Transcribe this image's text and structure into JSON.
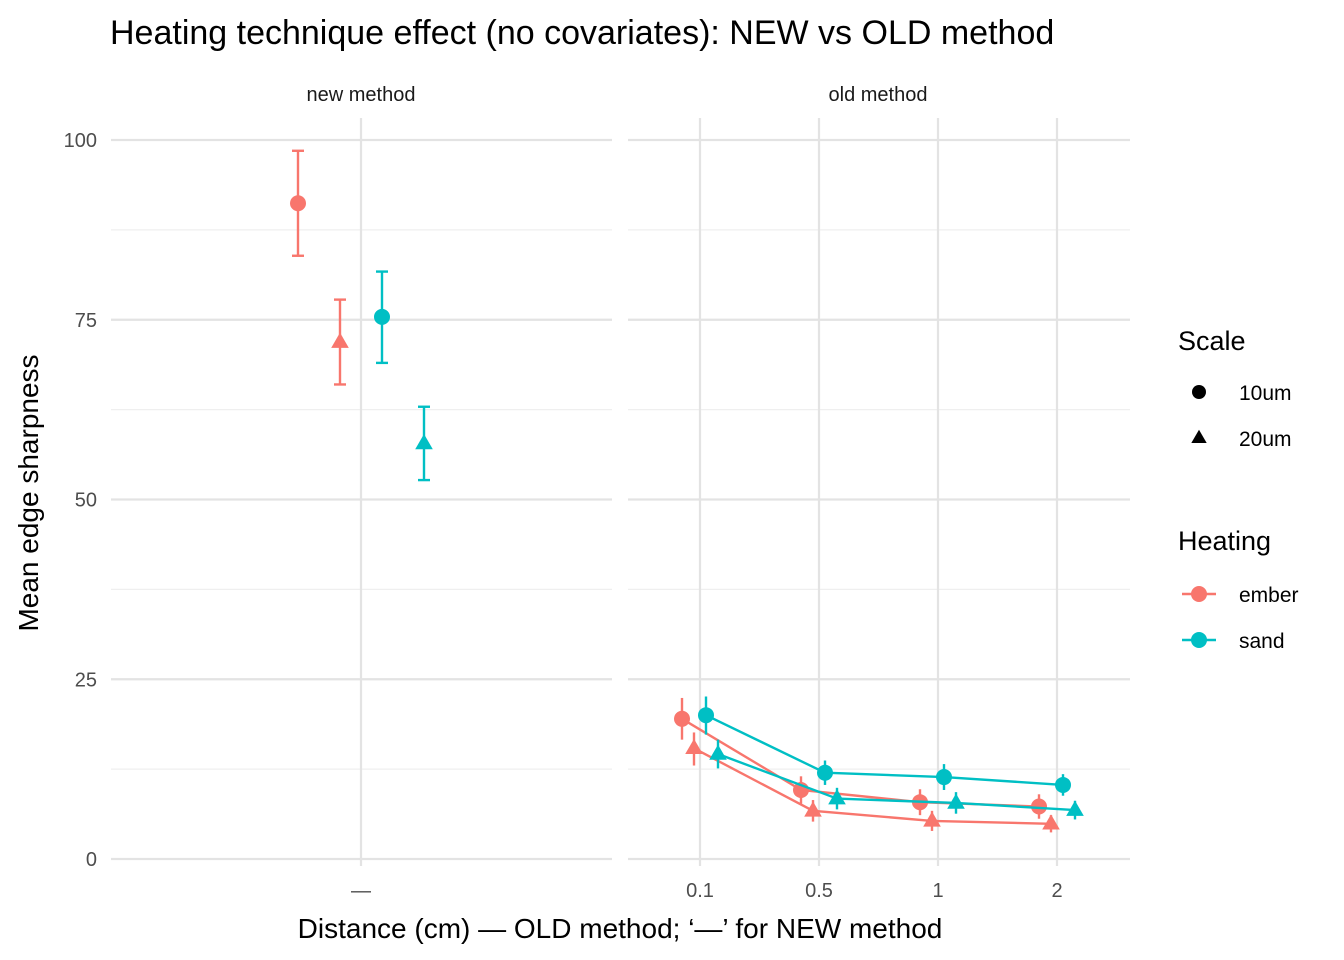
{
  "chart_data": {
    "type": "scatter",
    "title": "Heating technique effect (no covariates): NEW vs OLD method",
    "xlabel": "Distance (cm) — OLD method; ‘—’ for NEW method",
    "ylabel": "Mean edge sharpness",
    "ylim": [
      0,
      100
    ],
    "yticks": [
      0,
      25,
      50,
      75,
      100
    ],
    "grid": true,
    "legend_position": "right",
    "panels": [
      {
        "label": "new method",
        "x_categories": [
          "—"
        ],
        "points": [
          {
            "heating": "ember",
            "scale": "10um",
            "x": "—",
            "y": 91.2,
            "ymin": 83.9,
            "ymax": 98.5
          },
          {
            "heating": "ember",
            "scale": "20um",
            "x": "—",
            "y": 71.9,
            "ymin": 66.0,
            "ymax": 77.8
          },
          {
            "heating": "sand",
            "scale": "10um",
            "x": "—",
            "y": 75.4,
            "ymin": 69.0,
            "ymax": 81.7
          },
          {
            "heating": "sand",
            "scale": "20um",
            "x": "—",
            "y": 57.8,
            "ymin": 52.7,
            "ymax": 62.9
          }
        ]
      },
      {
        "label": "old method",
        "x_categories": [
          "0.1",
          "0.5",
          "1",
          "2"
        ],
        "series": [
          {
            "heating": "ember",
            "scale": "10um",
            "x": [
              "0.1",
              "0.5",
              "1",
              "2"
            ],
            "y": [
              19.5,
              9.6,
              7.9,
              7.3
            ],
            "ymin": [
              16.6,
              7.7,
              6.1,
              5.6
            ],
            "ymax": [
              22.4,
              11.5,
              9.7,
              9.0
            ]
          },
          {
            "heating": "ember",
            "scale": "20um",
            "x": [
              "0.1",
              "0.5",
              "1",
              "2"
            ],
            "y": [
              15.4,
              6.7,
              5.3,
              4.9
            ],
            "ymin": [
              13.0,
              5.2,
              3.9,
              3.7
            ],
            "ymax": [
              17.6,
              8.2,
              6.7,
              6.1
            ]
          },
          {
            "heating": "sand",
            "scale": "10um",
            "x": [
              "0.1",
              "0.5",
              "1",
              "2"
            ],
            "y": [
              20.0,
              12.0,
              11.4,
              10.3
            ],
            "ymin": [
              17.3,
              10.3,
              9.6,
              8.8
            ],
            "ymax": [
              22.6,
              13.7,
              13.2,
              11.8
            ]
          },
          {
            "heating": "sand",
            "scale": "20um",
            "x": [
              "0.1",
              "0.5",
              "1",
              "2"
            ],
            "y": [
              14.6,
              8.4,
              7.8,
              6.8
            ],
            "ymin": [
              12.6,
              6.9,
              6.3,
              5.5
            ],
            "ymax": [
              16.6,
              9.9,
              9.3,
              8.1
            ]
          }
        ]
      }
    ],
    "legends": [
      {
        "title": "Scale",
        "entries": [
          {
            "label": "10um",
            "shape": "circle"
          },
          {
            "label": "20um",
            "shape": "triangle"
          }
        ]
      },
      {
        "title": "Heating",
        "entries": [
          {
            "label": "ember",
            "color": "#F8766D"
          },
          {
            "label": "sand",
            "color": "#00BFC4"
          }
        ]
      }
    ]
  }
}
